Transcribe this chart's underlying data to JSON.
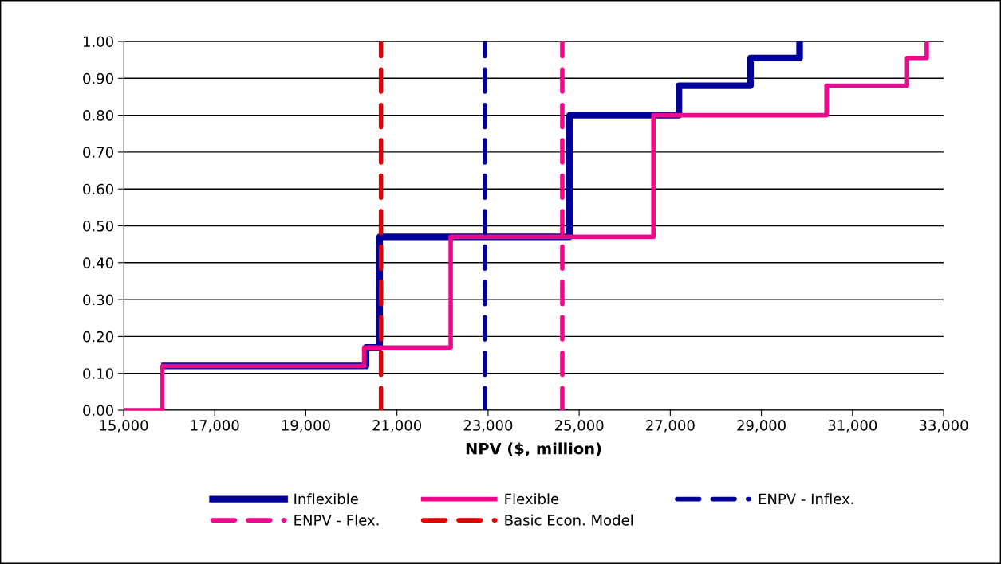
{
  "chart_data": {
    "type": "step",
    "xlabel": "NPV ($, million)",
    "series": [
      {
        "name": "Inflexible",
        "color": "#000099",
        "x": [
          15900,
          20320,
          20620,
          24790,
          27190,
          28760,
          29840
        ],
        "values": [
          0.12,
          0.17,
          0.47,
          0.8,
          0.88,
          0.955,
          1.0
        ]
      },
      {
        "name": "Flexible",
        "color": "#f0088c",
        "x": [
          15000,
          15850,
          20280,
          22180,
          26630,
          30430,
          32200,
          32630
        ],
        "values": [
          0,
          0.12,
          0.17,
          0.47,
          0.8,
          0.88,
          0.955,
          1.0
        ]
      }
    ],
    "ref_lines": [
      {
        "axis": "x",
        "value": 22930,
        "label": "ENPV - Inflex.",
        "color": "#000099",
        "line_style": "dashed"
      },
      {
        "axis": "x",
        "value": 24630,
        "label": "ENPV - Flex.",
        "color": "#f0088c",
        "line_style": "dashed"
      },
      {
        "axis": "x",
        "value": 20650,
        "label": "Basic Econ. Model",
        "color": "#e00000",
        "line_style": "dashed"
      }
    ],
    "xlim": [
      15000,
      33000
    ],
    "xticks": [
      {
        "value": 15000,
        "label": "15,000"
      },
      {
        "value": 17000,
        "label": "17,000"
      },
      {
        "value": 19000,
        "label": "19,000"
      },
      {
        "value": 21000,
        "label": "21,000"
      },
      {
        "value": 23000,
        "label": "23,000"
      },
      {
        "value": 25000,
        "label": "25,000"
      },
      {
        "value": 27000,
        "label": "27,000"
      },
      {
        "value": 29000,
        "label": "29,000"
      },
      {
        "value": 31000,
        "label": "31,000"
      },
      {
        "value": 33000,
        "label": "33,000"
      }
    ],
    "ylim": [
      0,
      1
    ],
    "yticks": [
      {
        "value": 0,
        "label": "0.00"
      },
      {
        "value": 0.1,
        "label": "0.10"
      },
      {
        "value": 0.2,
        "label": "0.20"
      },
      {
        "value": 0.3,
        "label": "0.30"
      },
      {
        "value": 0.4,
        "label": "0.40"
      },
      {
        "value": 0.5,
        "label": "0.50"
      },
      {
        "value": 0.6,
        "label": "0.60"
      },
      {
        "value": 0.7,
        "label": "0.70"
      },
      {
        "value": 0.8,
        "label": "0.80"
      },
      {
        "value": 0.9,
        "label": "0.90"
      },
      {
        "value": 1,
        "label": "1.00"
      }
    ],
    "grid": "y",
    "legend": "bottom",
    "line_style": "solid",
    "marker": "none"
  }
}
